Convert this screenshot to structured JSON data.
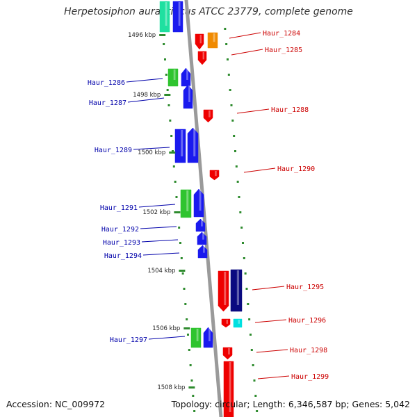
{
  "title": "Herpetosiphon aurantiacus ATCC 23779, complete genome",
  "footer": {
    "accession": "Accession: NC_009972",
    "topology": "Topology: circular; Length: 6,346,587 bp; Genes: 5,042"
  },
  "colors": {
    "backbone": "#9a9a9a",
    "tick": "#2e8b2e",
    "forward_label": "#cc0000",
    "reverse_label": "#0000aa",
    "red": "#ee0000",
    "blue": "#1a1aee",
    "green": "#2fc42f",
    "orange": "#f08a00",
    "navy": "#0a0a80",
    "cyan": "#00e0e0",
    "teal": "#1fe0a0"
  },
  "ticks": [
    "1496 kbp",
    "1498 kbp",
    "1500 kbp",
    "1502 kbp",
    "1504 kbp",
    "1506 kbp",
    "1508 kbp"
  ],
  "forward_genes": [
    "Haur_1284",
    "Haur_1285",
    "Haur_1288",
    "Haur_1290",
    "Haur_1295",
    "Haur_1296",
    "Haur_1298",
    "Haur_1299"
  ],
  "reverse_genes": [
    "Haur_1286",
    "Haur_1287",
    "Haur_1289",
    "Haur_1291",
    "Haur_1292",
    "Haur_1293",
    "Haur_1294",
    "Haur_1297"
  ]
}
